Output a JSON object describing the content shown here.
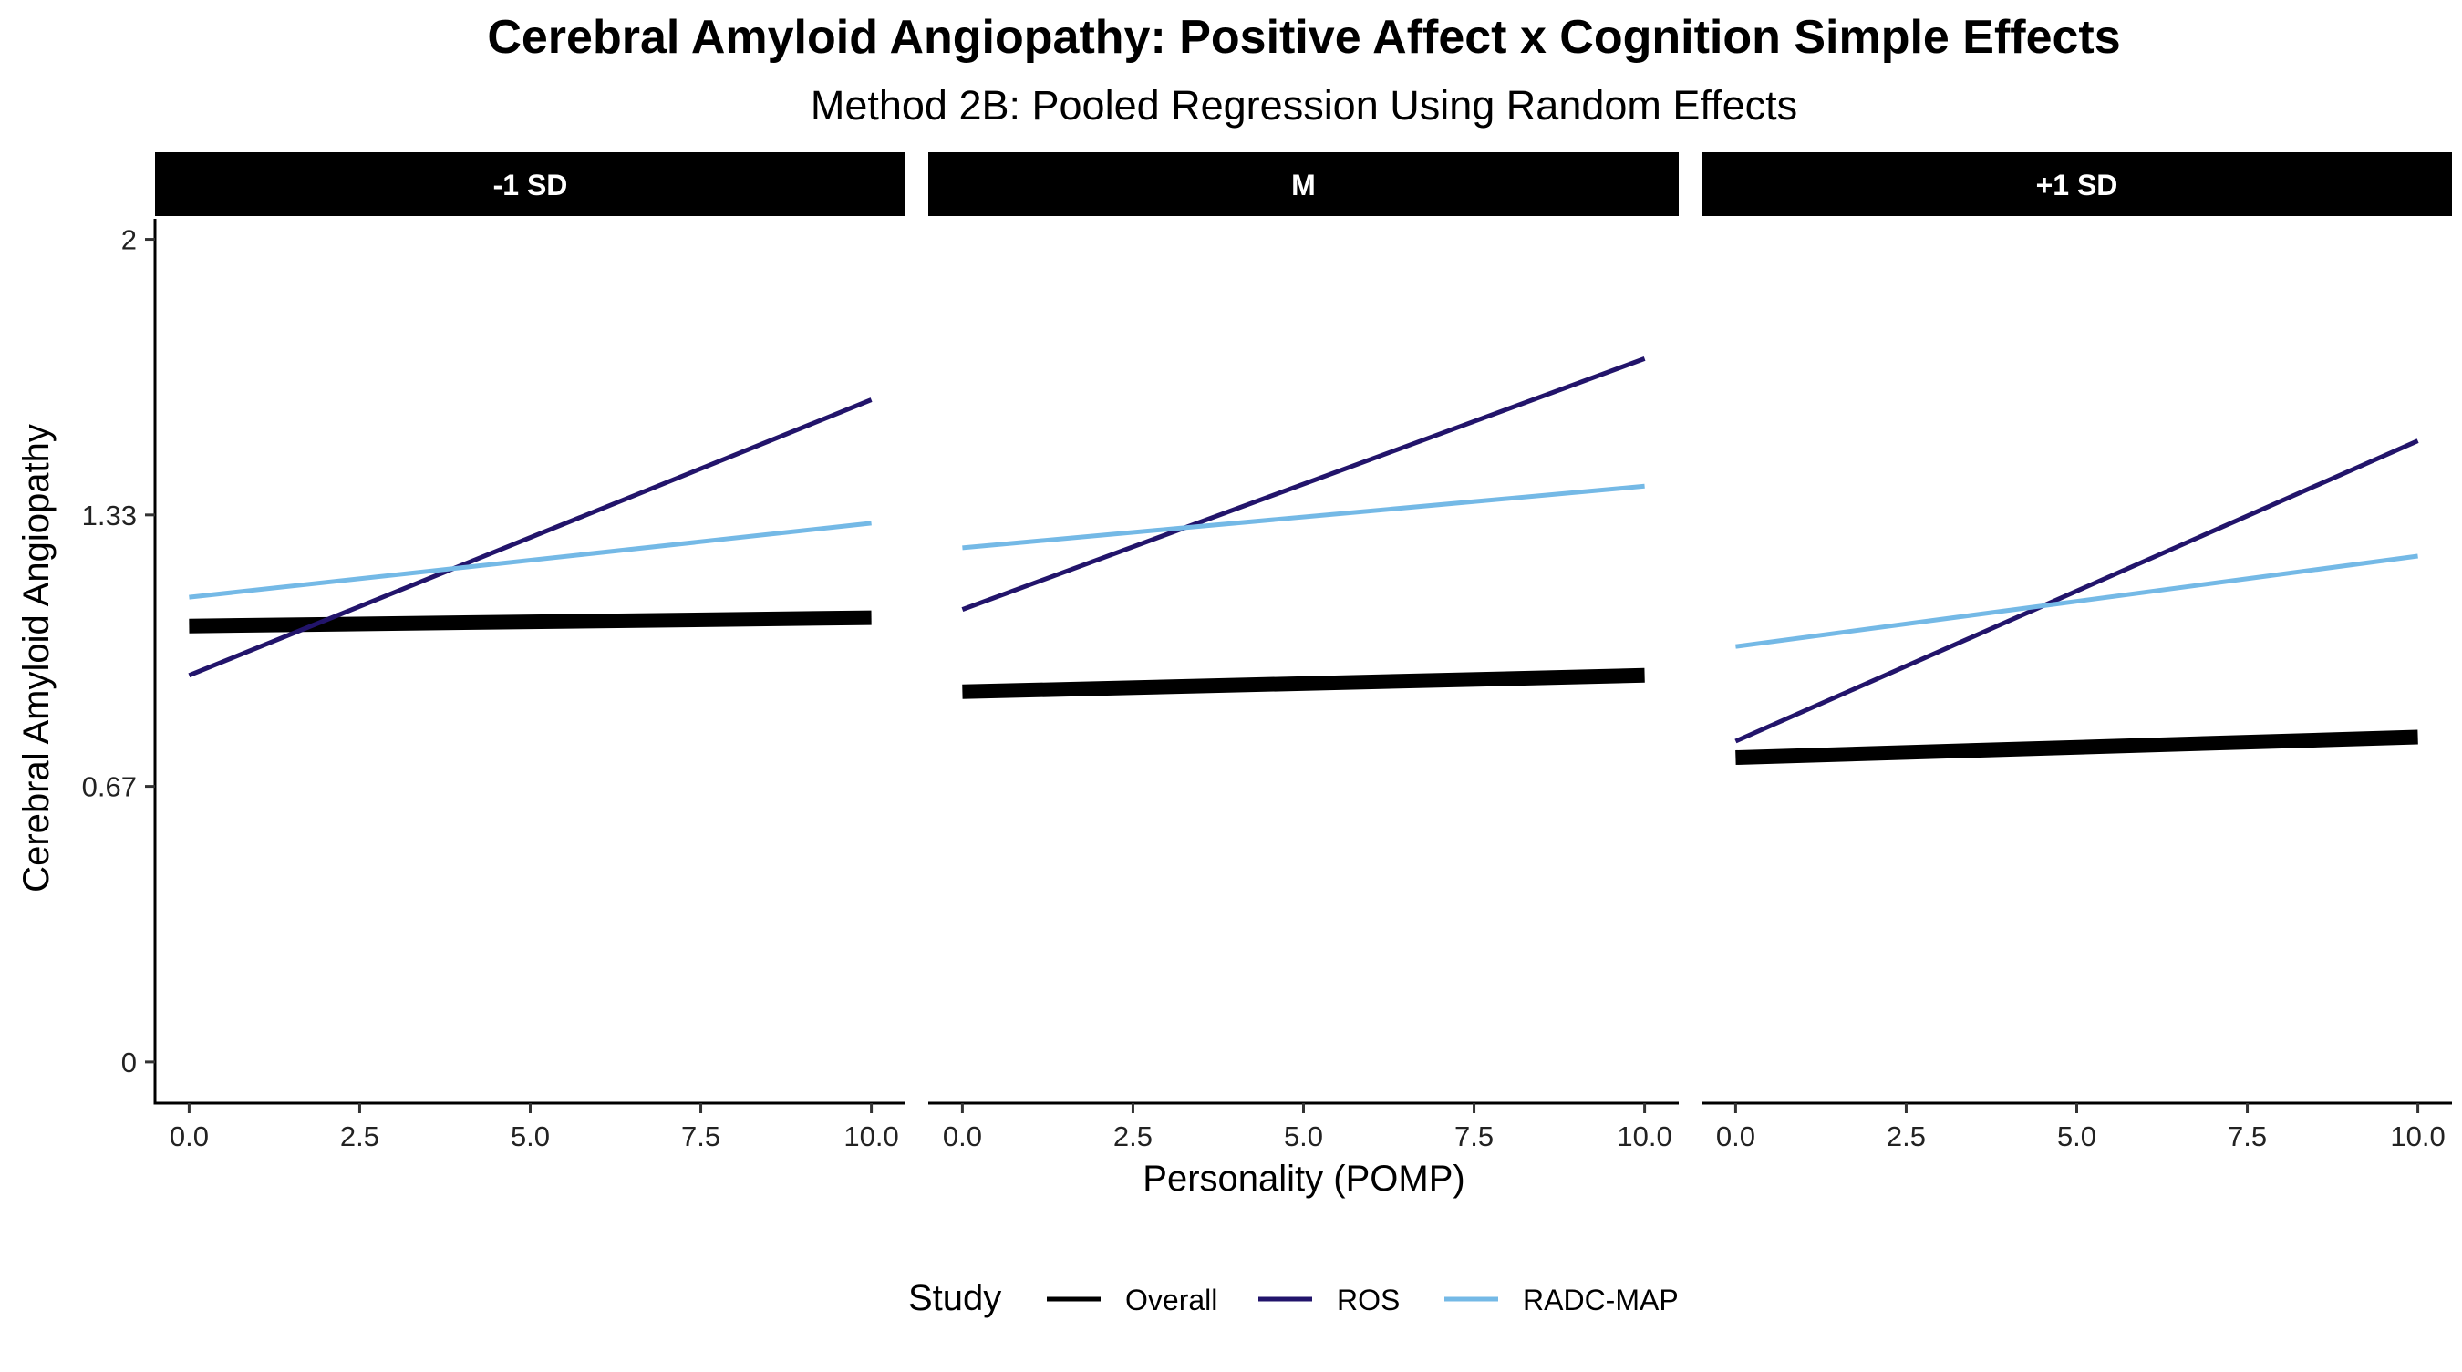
{
  "chart_data": {
    "type": "line",
    "title": "Cerebral Amyloid Angiopathy: Positive Affect x Cognition Simple Effects",
    "subtitle": "Method 2B: Pooled Regression Using Random Effects",
    "xlabel": "Personality (POMP)",
    "ylabel": "Cerebral Amyloid Angiopathy",
    "xlim": [
      -0.5,
      10.5
    ],
    "ylim": [
      -0.1,
      2.05
    ],
    "x_ticks": [
      0,
      2.5,
      5,
      7.5,
      10
    ],
    "x_tick_labels": [
      "0.0",
      "2.5",
      "5.0",
      "7.5",
      "10.0"
    ],
    "y_ticks": [
      0,
      0.67,
      1.33,
      2
    ],
    "y_tick_labels": [
      "0",
      "0.67",
      "1.33",
      "2"
    ],
    "grid": false,
    "legend": {
      "title": "Study",
      "position": "bottom",
      "entries": [
        {
          "name": "Overall",
          "color": "#000000"
        },
        {
          "name": "ROS",
          "color": "#22146b"
        },
        {
          "name": "RADC-MAP",
          "color": "#74b9e6"
        }
      ]
    },
    "panels": [
      {
        "label": "-1 SD",
        "series": [
          {
            "name": "Overall",
            "x": [
              0,
              10
            ],
            "y": [
              1.06,
              1.08
            ]
          },
          {
            "name": "ROS",
            "x": [
              0,
              10
            ],
            "y": [
              0.94,
              1.61
            ]
          },
          {
            "name": "RADC-MAP",
            "x": [
              0,
              10
            ],
            "y": [
              1.13,
              1.31
            ]
          }
        ]
      },
      {
        "label": "M",
        "series": [
          {
            "name": "Overall",
            "x": [
              0,
              10
            ],
            "y": [
              0.9,
              0.94
            ]
          },
          {
            "name": "ROS",
            "x": [
              0,
              10
            ],
            "y": [
              1.1,
              1.71
            ]
          },
          {
            "name": "RADC-MAP",
            "x": [
              0,
              10
            ],
            "y": [
              1.25,
              1.4
            ]
          }
        ]
      },
      {
        "label": "+1 SD",
        "series": [
          {
            "name": "Overall",
            "x": [
              0,
              10
            ],
            "y": [
              0.74,
              0.79
            ]
          },
          {
            "name": "ROS",
            "x": [
              0,
              10
            ],
            "y": [
              0.78,
              1.51
            ]
          },
          {
            "name": "RADC-MAP",
            "x": [
              0,
              10
            ],
            "y": [
              1.01,
              1.23
            ]
          }
        ]
      }
    ]
  }
}
